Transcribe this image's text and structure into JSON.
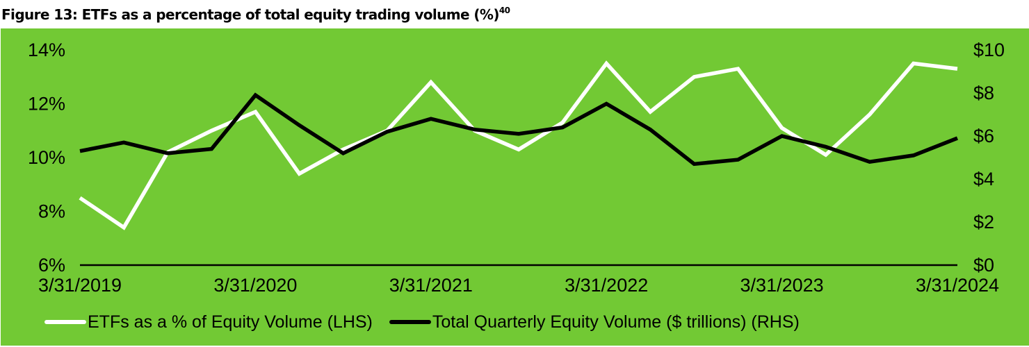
{
  "figure": {
    "title": "Figure 13: ETFs as a percentage of total equity trading volume (%)",
    "footnote_marker": "40"
  },
  "colors": {
    "background": "#72C934",
    "etf_line": "#FFFFFF",
    "volume_line": "#000000",
    "axis": "#000000"
  },
  "axes": {
    "left_ticks": [
      "6%",
      "8%",
      "10%",
      "12%",
      "14%"
    ],
    "right_ticks": [
      "$0",
      "$2",
      "$4",
      "$6",
      "$8",
      "$10"
    ],
    "x_ticks": [
      "3/31/2019",
      "3/31/2020",
      "3/31/2021",
      "3/31/2022",
      "3/31/2023",
      "3/31/2024"
    ]
  },
  "legend": {
    "items": [
      {
        "label": "ETFs as a % of Equity Volume (LHS)",
        "color": "#FFFFFF"
      },
      {
        "label": "Total Quarterly Equity Volume ($ trillions) (RHS)",
        "color": "#000000"
      }
    ]
  },
  "chart_data": {
    "type": "line",
    "title": "Figure 13: ETFs as a percentage of total equity trading volume (%)",
    "xlabel": "",
    "ylabel_left": "ETFs as a % of Equity Volume",
    "ylabel_right": "Total Quarterly Equity Volume ($ trillions)",
    "x": [
      "3/31/2019",
      "6/30/2019",
      "9/30/2019",
      "12/31/2019",
      "3/31/2020",
      "6/30/2020",
      "9/30/2020",
      "12/31/2020",
      "3/31/2021",
      "6/30/2021",
      "9/30/2021",
      "12/31/2021",
      "3/31/2022",
      "6/30/2022",
      "9/30/2022",
      "12/31/2022",
      "3/31/2023",
      "6/30/2023",
      "9/30/2023",
      "12/31/2023",
      "3/31/2024"
    ],
    "x_tick_labels": [
      "3/31/2019",
      "3/31/2020",
      "3/31/2021",
      "3/31/2022",
      "3/31/2023",
      "3/31/2024"
    ],
    "series": [
      {
        "name": "ETFs as a % of Equity Volume (LHS)",
        "axis": "left",
        "color": "#FFFFFF",
        "values": [
          8.5,
          7.4,
          10.2,
          11.0,
          11.7,
          9.4,
          10.3,
          11.0,
          12.8,
          11.0,
          10.3,
          11.3,
          13.5,
          11.7,
          13.0,
          13.3,
          11.1,
          10.1,
          11.6,
          13.5,
          13.3
        ]
      },
      {
        "name": "Total Quarterly Equity Volume ($ trillions) (RHS)",
        "axis": "right",
        "color": "#000000",
        "values": [
          5.3,
          5.7,
          5.2,
          5.4,
          7.9,
          6.5,
          5.2,
          6.2,
          6.8,
          6.3,
          6.1,
          6.4,
          7.5,
          6.3,
          4.7,
          4.9,
          6.0,
          5.5,
          4.8,
          5.1,
          5.9
        ]
      }
    ],
    "ylim_left": [
      6,
      14
    ],
    "ylim_right": [
      0,
      10
    ],
    "left_ticks": [
      6,
      8,
      10,
      12,
      14
    ],
    "right_ticks": [
      0,
      2,
      4,
      6,
      8,
      10
    ],
    "grid": false,
    "legend_position": "bottom"
  }
}
